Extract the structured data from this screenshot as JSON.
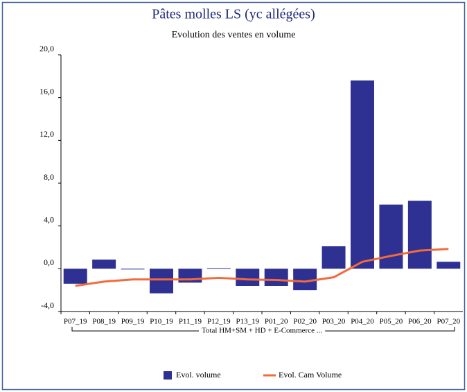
{
  "chart_data": {
    "type": "bar",
    "title": "Pâtes molles LS (yc allégées)",
    "subtitle": "Evolution des ventes en volume",
    "group_label": "Total HM+SM + HD + E-Commerce ...",
    "categories": [
      "P07_19",
      "P08_19",
      "P09_19",
      "P10_19",
      "P11_19",
      "P12_19",
      "P13_19",
      "P01_20",
      "P02_20",
      "P03_20",
      "P04_20",
      "P05_20",
      "P06_20",
      "P07_20"
    ],
    "series": [
      {
        "name": "Evol. volume",
        "type": "bar",
        "color": "#2e3192",
        "values": [
          -1.4,
          0.85,
          -0.05,
          -2.3,
          -1.3,
          0.05,
          -1.6,
          -1.6,
          -2.0,
          2.1,
          17.6,
          6.0,
          6.35,
          0.65
        ]
      },
      {
        "name": "Evol. Cam Volume",
        "type": "line",
        "color": "#f26b3a",
        "values": [
          -1.6,
          -1.2,
          -1.0,
          -1.0,
          -1.0,
          -0.85,
          -1.0,
          -1.05,
          -1.2,
          -0.8,
          0.65,
          1.2,
          1.7,
          1.85
        ]
      }
    ],
    "ylim": [
      -4,
      20
    ],
    "yticks": [
      {
        "value": -4,
        "label": "-4,0"
      },
      {
        "value": 0,
        "label": "0,0"
      },
      {
        "value": 4,
        "label": "4,0"
      },
      {
        "value": 8,
        "label": "8,0"
      },
      {
        "value": 12,
        "label": "12,0"
      },
      {
        "value": 16,
        "label": "16,0"
      },
      {
        "value": 20,
        "label": "20,0"
      }
    ],
    "legend": "bottom"
  }
}
